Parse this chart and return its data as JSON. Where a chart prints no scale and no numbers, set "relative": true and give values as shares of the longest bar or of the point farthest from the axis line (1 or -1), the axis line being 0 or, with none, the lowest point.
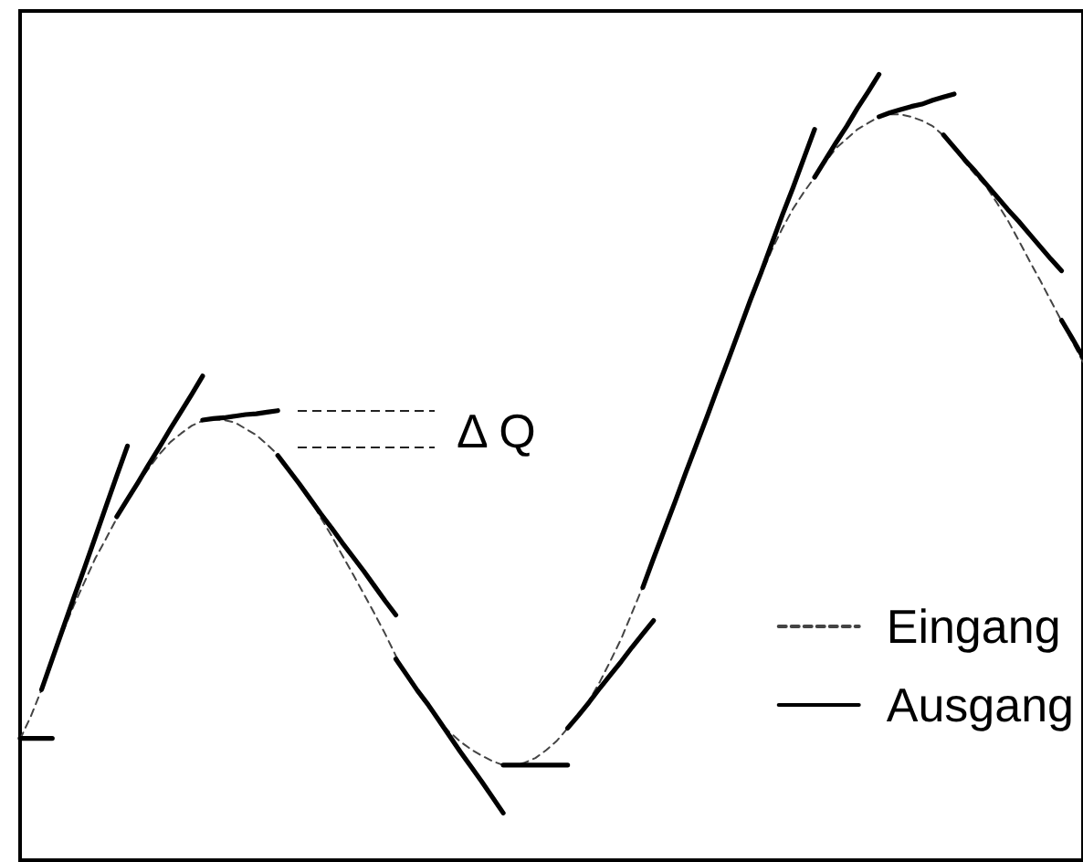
{
  "chart_data": {
    "type": "line",
    "relative": true,
    "legend": "bottom right",
    "annotations": [
      "Δ Q"
    ],
    "categories": [
      null,
      null,
      null,
      null,
      null,
      null,
      null,
      null,
      null,
      null,
      null,
      null,
      null,
      null,
      null,
      null,
      null,
      null,
      null,
      null,
      null,
      null,
      null,
      null,
      null,
      null,
      null,
      null,
      null,
      null,
      null,
      null,
      null,
      null,
      null,
      null,
      null,
      null,
      null,
      null,
      null,
      null,
      null,
      null,
      null,
      null,
      null,
      null,
      null,
      null,
      null,
      null,
      null,
      null,
      null,
      null,
      null,
      null,
      null,
      null,
      null,
      null,
      null,
      null,
      null,
      null,
      null,
      null,
      null,
      null,
      null,
      null,
      null,
      null,
      null,
      null,
      null,
      null,
      null,
      null,
      null,
      null,
      null,
      null,
      null,
      null,
      null,
      null,
      null,
      null,
      null,
      null,
      null,
      null,
      null,
      null,
      null,
      null,
      null,
      null
    ],
    "series": [
      {
        "name": "Eingang",
        "color": "#444444",
        "line_style": "dashed",
        "values": [
          0.154,
          0.183,
          0.217,
          0.256,
          0.291,
          0.324,
          0.354,
          0.384,
          0.409,
          0.435,
          0.459,
          0.48,
          0.499,
          0.517,
          0.532,
          0.543,
          0.553,
          0.559,
          0.561,
          0.56,
          0.557,
          0.549,
          0.541,
          0.529,
          0.516,
          0.499,
          0.48,
          0.46,
          0.436,
          0.413,
          0.388,
          0.364,
          0.339,
          0.314,
          0.288,
          0.26,
          0.235,
          0.214,
          0.195,
          0.177,
          0.163,
          0.151,
          0.141,
          0.133,
          0.126,
          0.121,
          0.121,
          0.124,
          0.13,
          0.14,
          0.152,
          0.168,
          0.184,
          0.203,
          0.227,
          0.254,
          0.282,
          0.315,
          0.348,
          0.383,
          0.418,
          0.454,
          0.492,
          0.528,
          0.566,
          0.603,
          0.638,
          0.675,
          0.711,
          0.744,
          0.776,
          0.804,
          0.829,
          0.85,
          0.869,
          0.888,
          0.906,
          0.918,
          0.93,
          0.938,
          0.946,
          0.949,
          0.949,
          0.946,
          0.941,
          0.934,
          0.922,
          0.906,
          0.888,
          0.872,
          0.857,
          0.836,
          0.814,
          0.789,
          0.763,
          0.738,
          0.712,
          0.686,
          0.66,
          0.634
        ]
      },
      {
        "name": "Ausgang",
        "color": "#000000",
        "line_style": "solid",
        "values": [
          0.155,
          0.155,
          0.155,
          0.155,
          null,
          null,
          null,
          null,
          null,
          0.437,
          0.459,
          0.481,
          0.504,
          0.526,
          0.549,
          0.571,
          0.593,
          0.616,
          null,
          null,
          null,
          null,
          null,
          null,
          0.515,
          0.497,
          0.479,
          0.46,
          0.441,
          0.423,
          0.404,
          0.386,
          0.368,
          0.349,
          0.33,
          0.312,
          null,
          null,
          null,
          null,
          null,
          null,
          null,
          null,
          null,
          0.121,
          0.121,
          0.121,
          0.121,
          0.121,
          0.121,
          0.121,
          null,
          null,
          null,
          null,
          null,
          null,
          0.347,
          0.384,
          0.42,
          0.456,
          0.493,
          0.529,
          0.565,
          0.602,
          0.638,
          0.675,
          0.712,
          0.747,
          0.784,
          0.821,
          0.856,
          0.893,
          0.93,
          null,
          null,
          null,
          null,
          null,
          0.946,
          0.951,
          0.955,
          0.959,
          0.962,
          0.967,
          0.971,
          0.975,
          null,
          null,
          null,
          null,
          null,
          null,
          null,
          null,
          null,
          0.687,
          0.664,
          0.64
        ]
      },
      {
        "color": "#000000",
        "line_style": "solid",
        "values": [
          null,
          null,
          0.217,
          0.256,
          0.295,
          0.334,
          0.372,
          0.411,
          0.45,
          0.489,
          0.527,
          null,
          null,
          null,
          null,
          null,
          null,
          0.56,
          0.562,
          0.563,
          0.565,
          0.567,
          0.568,
          0.57,
          0.572,
          null,
          null,
          null,
          null,
          null,
          null,
          null,
          null,
          null,
          null,
          0.256,
          0.236,
          0.216,
          0.198,
          0.178,
          0.158,
          0.138,
          0.119,
          0.1,
          0.08,
          0.06,
          null,
          null,
          null,
          null,
          null,
          0.168,
          0.184,
          0.201,
          0.219,
          0.236,
          0.253,
          0.271,
          0.288,
          0.305,
          null,
          null,
          null,
          null,
          null,
          null,
          null,
          null,
          null,
          null,
          null,
          null,
          null,
          null,
          0.869,
          0.891,
          0.913,
          0.934,
          0.957,
          0.978,
          1,
          null,
          null,
          null,
          null,
          null,
          0.923,
          0.907,
          0.891,
          0.876,
          0.86,
          0.844,
          0.828,
          0.813,
          0.797,
          0.781,
          0.765,
          0.75,
          null,
          null
        ]
      }
    ]
  }
}
